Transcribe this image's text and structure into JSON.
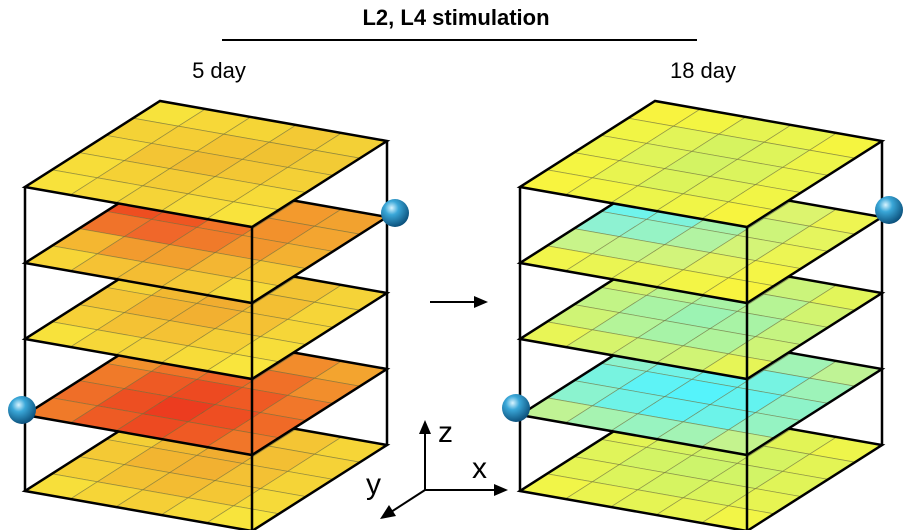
{
  "title": "L2, L4 stimulation",
  "arrow": "→",
  "axes": {
    "x": "x",
    "y": "y",
    "z": "z"
  },
  "cubes": [
    {
      "label": "5 day",
      "layers": [
        [
          "#f7e33c",
          "#f7d838",
          "#f5d536",
          "#f3c934",
          "#f3d036",
          "#f4d236",
          "#f5ce35",
          "#f3c433",
          "#f0c232",
          "#f2cb35",
          "#f6d838",
          "#f3c534",
          "#f1bd32",
          "#f3c734",
          "#f4d036",
          "#f7dd39",
          "#f5d135",
          "#f4cc35",
          "#f6d437",
          "#f7db39",
          "#f8e23b",
          "#f6da39",
          "#f5d437",
          "#f7dc3a",
          "#f9e33c"
        ],
        [
          "#ef5a22",
          "#f06a25",
          "#f2812a",
          "#f39a2d",
          "#f2a22f",
          "#ee4e20",
          "#ef5622",
          "#f17328",
          "#f2912c",
          "#f3a530",
          "#f0732a",
          "#f0672a",
          "#f07a2a",
          "#f2952d",
          "#f3b131",
          "#f4b731",
          "#f29b2e",
          "#f2a02e",
          "#f3b633",
          "#f5c835",
          "#f7d537",
          "#f5c234",
          "#f4bd33",
          "#f5c936",
          "#f7da39"
        ],
        [
          "#f6d93a",
          "#f4ce36",
          "#f3bf33",
          "#f3c434",
          "#f5d338",
          "#f5d137",
          "#f2b831",
          "#f1ad30",
          "#f3bf33",
          "#f6d538",
          "#f4c535",
          "#f2b331",
          "#f2b031",
          "#f4c134",
          "#f6d638",
          "#f6d037",
          "#f4c234",
          "#f4c234",
          "#f5cf36",
          "#f7de3a",
          "#f8e23b",
          "#f6d738",
          "#f6d438",
          "#f7dc39",
          "#f9e53d"
        ],
        [
          "#f4b232",
          "#f3a12f",
          "#f28d2c",
          "#f28c2c",
          "#f3a42f",
          "#f2902c",
          "#f07328",
          "#ef6426",
          "#f07028",
          "#f28e2c",
          "#f07a29",
          "#ee5a24",
          "#ed4a21",
          "#ef5a24",
          "#f1772a",
          "#ef6e28",
          "#ed4f22",
          "#ec3c1f",
          "#ee4e22",
          "#f06a27",
          "#f07a29",
          "#ee5b24",
          "#ed4a21",
          "#ef5a24",
          "#f17629"
        ],
        [
          "#f6db39",
          "#f4cc35",
          "#f3bf33",
          "#f4c534",
          "#f6d537",
          "#f4cf36",
          "#f2b931",
          "#f1ad30",
          "#f3bf33",
          "#f5d237",
          "#f4c935",
          "#f2b531",
          "#f2b131",
          "#f3c134",
          "#f5d437",
          "#f5d036",
          "#f3c233",
          "#f3bc32",
          "#f4c734",
          "#f6da39",
          "#f7df3a",
          "#f6d537",
          "#f5cf36",
          "#f6d939",
          "#f8e43c"
        ]
      ]
    },
    {
      "label": "18 day",
      "layers": [
        [
          "#f8f33f",
          "#f3f542",
          "#e6f452",
          "#eaf54e",
          "#f5f540",
          "#f1f545",
          "#e2f458",
          "#d6f360",
          "#def45a",
          "#eef54a",
          "#eef549",
          "#dff45a",
          "#d3f363",
          "#dbf45d",
          "#ebf54d",
          "#f4f542",
          "#e8f450",
          "#dcf45b",
          "#e3f455",
          "#f1f546",
          "#f8f43f",
          "#f3f543",
          "#ecf54b",
          "#f0f547",
          "#f7f43f"
        ],
        [
          "#7ff3e4",
          "#90f3d0",
          "#b8f39d",
          "#dcf46e",
          "#eef552",
          "#6ff4ec",
          "#7ef3dc",
          "#a6f3ad",
          "#cdf47a",
          "#e5f55e",
          "#8ef2d2",
          "#96f3c5",
          "#b2f3a2",
          "#d4f477",
          "#ecf554",
          "#c8f48a",
          "#c6f489",
          "#d2f47b",
          "#e7f45e",
          "#f4f546",
          "#f1f54b",
          "#eaf553",
          "#ecf551",
          "#f3f546",
          "#f8f43f"
        ],
        [
          "#e8f553",
          "#d7f46b",
          "#c1f487",
          "#cbf47b",
          "#e2f55a",
          "#d3f46f",
          "#b9f492",
          "#a8f3a5",
          "#b6f495",
          "#d2f470",
          "#c2f486",
          "#a9f3a4",
          "#9cf3b3",
          "#a8f3a5",
          "#c5f481",
          "#cff475",
          "#b4f499",
          "#a7f3a7",
          "#b0f49c",
          "#cef477",
          "#e8f556",
          "#d6f46c",
          "#c9f47d",
          "#d0f475",
          "#e6f557"
        ],
        [
          "#b6f3a0",
          "#a2f3b6",
          "#93f3c6",
          "#a1f3b5",
          "#bff395",
          "#8cf3ce",
          "#72f3e6",
          "#66f3ef",
          "#76f3e2",
          "#9df3b9",
          "#78f3e0",
          "#5ef3f6",
          "#55f3fb",
          "#63f3ef",
          "#8ef3c9",
          "#8bf3cf",
          "#6ef3e8",
          "#5ff3f4",
          "#6cf3e9",
          "#95f3c2",
          "#c0f394",
          "#a6f3b1",
          "#98f3c0",
          "#a3f3b4",
          "#c4f38e"
        ],
        [
          "#f0f549",
          "#e6f553",
          "#dcf45c",
          "#e2f456",
          "#eef54b",
          "#e4f455",
          "#d8f461",
          "#d0f468",
          "#d6f462",
          "#e3f455",
          "#e0f45a",
          "#d3f465",
          "#cdf46b",
          "#d2f466",
          "#e0f458",
          "#e6f453",
          "#dcf45c",
          "#d6f461",
          "#dbf45c",
          "#e7f452",
          "#f1f548",
          "#eaf44f",
          "#e5f454",
          "#e9f450",
          "#f2f547"
        ]
      ]
    }
  ]
}
